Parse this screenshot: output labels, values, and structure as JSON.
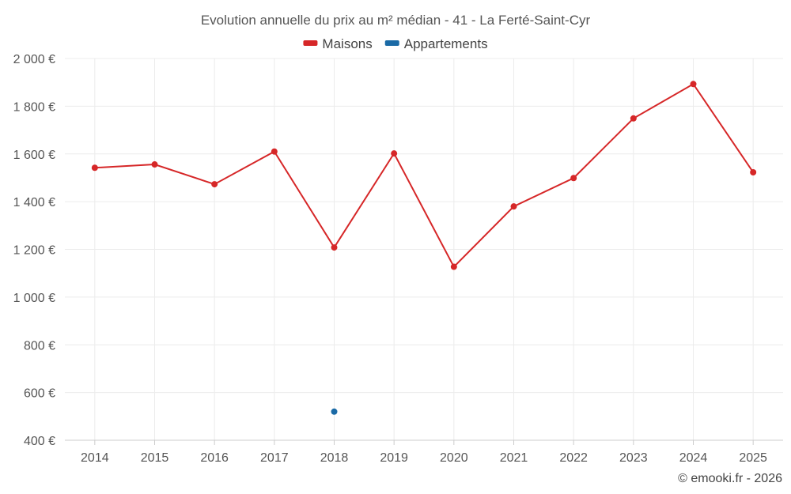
{
  "chart_data": {
    "type": "line",
    "title": "Evolution annuelle du prix au m² médian - 41 - La Ferté-Saint-Cyr",
    "xlabel": "",
    "ylabel": "",
    "categories": [
      "2014",
      "2015",
      "2016",
      "2017",
      "2018",
      "2019",
      "2020",
      "2021",
      "2022",
      "2023",
      "2024",
      "2025"
    ],
    "ylim": [
      400,
      2000
    ],
    "yticks": [
      400,
      600,
      800,
      1000,
      1200,
      1400,
      1600,
      1800,
      2000
    ],
    "ytick_labels": [
      "400 €",
      "600 €",
      "800 €",
      "1 000 €",
      "1 200 €",
      "1 400 €",
      "1 600 €",
      "1 800 €",
      "2 000 €"
    ],
    "grid": true,
    "legend_position": "top-center",
    "series": [
      {
        "name": "Maisons",
        "color": "#d62728",
        "values": [
          1542,
          1556,
          1473,
          1610,
          1208,
          1602,
          1127,
          1380,
          1499,
          1749,
          1893,
          1523
        ]
      },
      {
        "name": "Appartements",
        "color": "#1a6aa6",
        "values": [
          null,
          null,
          null,
          null,
          520,
          null,
          null,
          null,
          null,
          null,
          null,
          null
        ]
      }
    ]
  },
  "credit": "© emooki.fr - 2026"
}
